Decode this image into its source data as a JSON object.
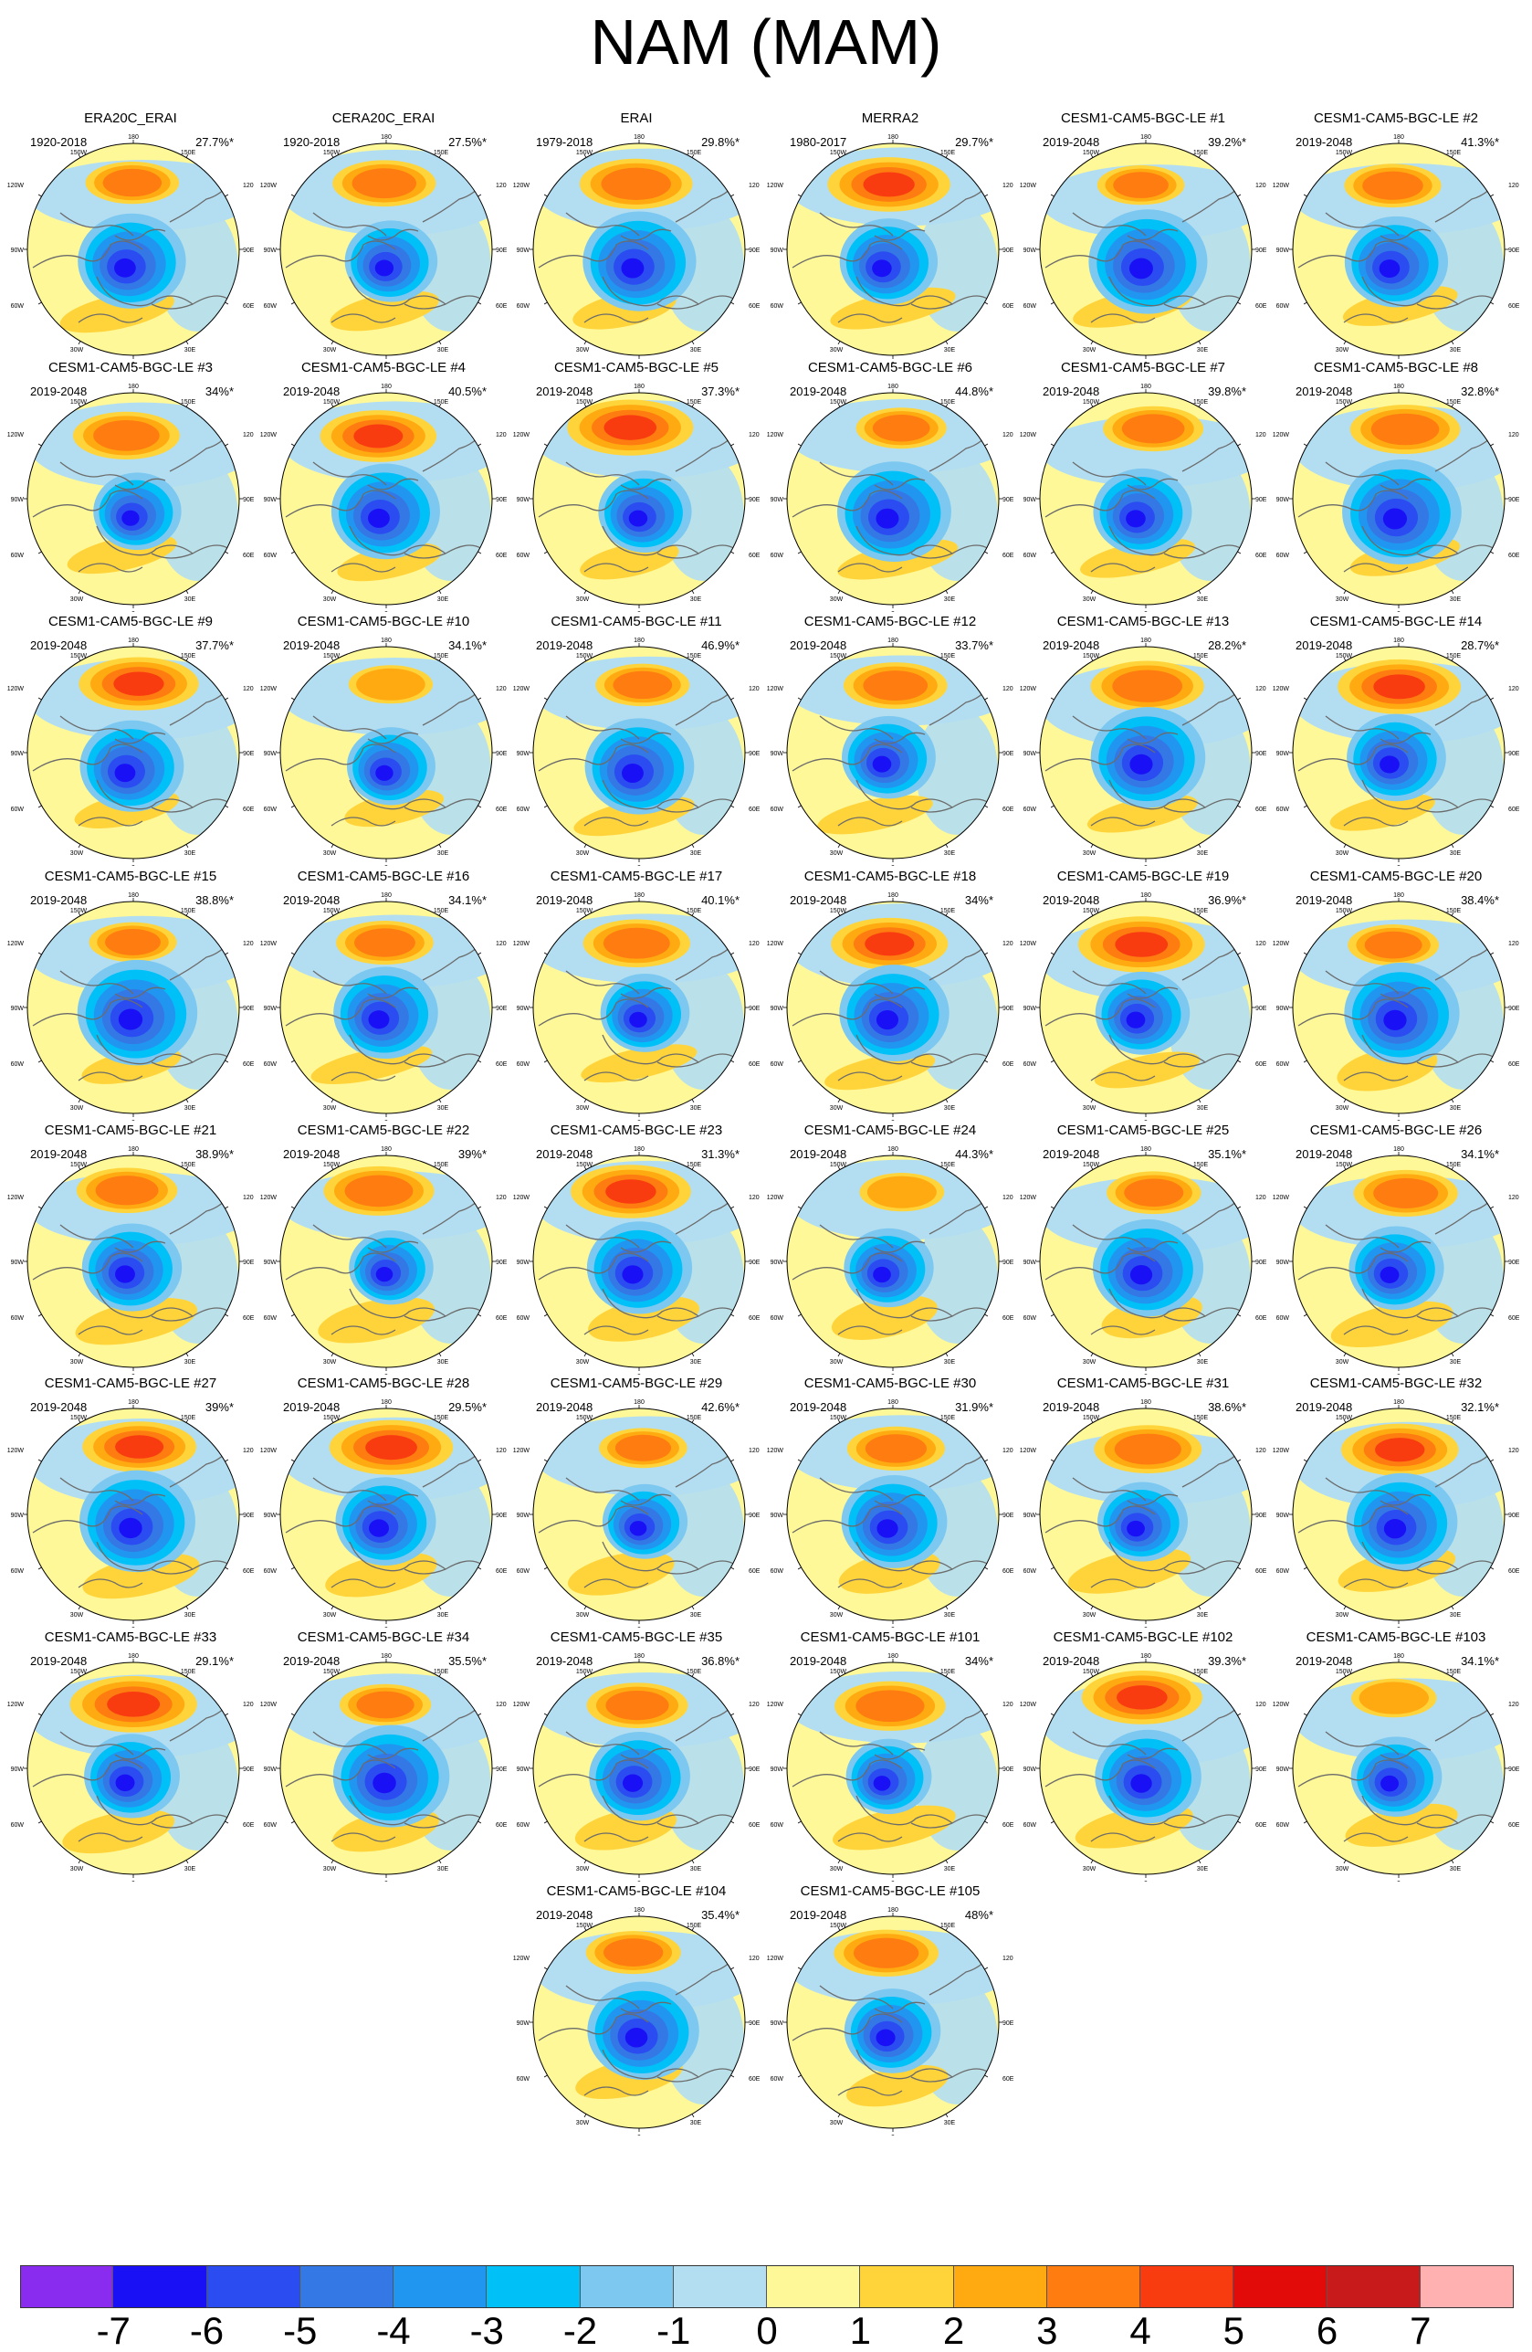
{
  "title": "NAM (MAM)",
  "panels": [
    {
      "title": "ERA20C_ERAI",
      "years": "1920-2018",
      "pct": "27.7%*"
    },
    {
      "title": "CERA20C_ERAI",
      "years": "1920-2018",
      "pct": "27.5%*"
    },
    {
      "title": "ERAI",
      "years": "1979-2018",
      "pct": "29.8%*"
    },
    {
      "title": "MERRA2",
      "years": "1980-2017",
      "pct": "29.7%*"
    },
    {
      "title": "CESM1-CAM5-BGC-LE #1",
      "years": "2019-2048",
      "pct": "39.2%*"
    },
    {
      "title": "CESM1-CAM5-BGC-LE #2",
      "years": "2019-2048",
      "pct": "41.3%*"
    },
    {
      "title": "CESM1-CAM5-BGC-LE #3",
      "years": "2019-2048",
      "pct": "34%*"
    },
    {
      "title": "CESM1-CAM5-BGC-LE #4",
      "years": "2019-2048",
      "pct": "40.5%*"
    },
    {
      "title": "CESM1-CAM5-BGC-LE #5",
      "years": "2019-2048",
      "pct": "37.3%*"
    },
    {
      "title": "CESM1-CAM5-BGC-LE #6",
      "years": "2019-2048",
      "pct": "44.8%*"
    },
    {
      "title": "CESM1-CAM5-BGC-LE #7",
      "years": "2019-2048",
      "pct": "39.8%*"
    },
    {
      "title": "CESM1-CAM5-BGC-LE #8",
      "years": "2019-2048",
      "pct": "32.8%*"
    },
    {
      "title": "CESM1-CAM5-BGC-LE #9",
      "years": "2019-2048",
      "pct": "37.7%*"
    },
    {
      "title": "CESM1-CAM5-BGC-LE #10",
      "years": "2019-2048",
      "pct": "34.1%*"
    },
    {
      "title": "CESM1-CAM5-BGC-LE #11",
      "years": "2019-2048",
      "pct": "46.9%*"
    },
    {
      "title": "CESM1-CAM5-BGC-LE #12",
      "years": "2019-2048",
      "pct": "33.7%*"
    },
    {
      "title": "CESM1-CAM5-BGC-LE #13",
      "years": "2019-2048",
      "pct": "28.2%*"
    },
    {
      "title": "CESM1-CAM5-BGC-LE #14",
      "years": "2019-2048",
      "pct": "28.7%*"
    },
    {
      "title": "CESM1-CAM5-BGC-LE #15",
      "years": "2019-2048",
      "pct": "38.8%*"
    },
    {
      "title": "CESM1-CAM5-BGC-LE #16",
      "years": "2019-2048",
      "pct": "34.1%*"
    },
    {
      "title": "CESM1-CAM5-BGC-LE #17",
      "years": "2019-2048",
      "pct": "40.1%*"
    },
    {
      "title": "CESM1-CAM5-BGC-LE #18",
      "years": "2019-2048",
      "pct": "34%*"
    },
    {
      "title": "CESM1-CAM5-BGC-LE #19",
      "years": "2019-2048",
      "pct": "36.9%*"
    },
    {
      "title": "CESM1-CAM5-BGC-LE #20",
      "years": "2019-2048",
      "pct": "38.4%*"
    },
    {
      "title": "CESM1-CAM5-BGC-LE #21",
      "years": "2019-2048",
      "pct": "38.9%*"
    },
    {
      "title": "CESM1-CAM5-BGC-LE #22",
      "years": "2019-2048",
      "pct": "39%*"
    },
    {
      "title": "CESM1-CAM5-BGC-LE #23",
      "years": "2019-2048",
      "pct": "31.3%*"
    },
    {
      "title": "CESM1-CAM5-BGC-LE #24",
      "years": "2019-2048",
      "pct": "44.3%*"
    },
    {
      "title": "CESM1-CAM5-BGC-LE #25",
      "years": "2019-2048",
      "pct": "35.1%*"
    },
    {
      "title": "CESM1-CAM5-BGC-LE #26",
      "years": "2019-2048",
      "pct": "34.1%*"
    },
    {
      "title": "CESM1-CAM5-BGC-LE #27",
      "years": "2019-2048",
      "pct": "39%*"
    },
    {
      "title": "CESM1-CAM5-BGC-LE #28",
      "years": "2019-2048",
      "pct": "29.5%*"
    },
    {
      "title": "CESM1-CAM5-BGC-LE #29",
      "years": "2019-2048",
      "pct": "42.6%*"
    },
    {
      "title": "CESM1-CAM5-BGC-LE #30",
      "years": "2019-2048",
      "pct": "31.9%*"
    },
    {
      "title": "CESM1-CAM5-BGC-LE #31",
      "years": "2019-2048",
      "pct": "38.6%*"
    },
    {
      "title": "CESM1-CAM5-BGC-LE #32",
      "years": "2019-2048",
      "pct": "32.1%*"
    },
    {
      "title": "CESM1-CAM5-BGC-LE #33",
      "years": "2019-2048",
      "pct": "29.1%*"
    },
    {
      "title": "CESM1-CAM5-BGC-LE #34",
      "years": "2019-2048",
      "pct": "35.5%*"
    },
    {
      "title": "CESM1-CAM5-BGC-LE #35",
      "years": "2019-2048",
      "pct": "36.8%*"
    },
    {
      "title": "CESM1-CAM5-BGC-LE #101",
      "years": "2019-2048",
      "pct": "34%*"
    },
    {
      "title": "CESM1-CAM5-BGC-LE #102",
      "years": "2019-2048",
      "pct": "39.3%*"
    },
    {
      "title": "CESM1-CAM5-BGC-LE #103",
      "years": "2019-2048",
      "pct": "34.1%*"
    },
    {
      "title": "CESM1-CAM5-BGC-LE #104",
      "years": "2019-2048",
      "pct": "35.4%*"
    },
    {
      "title": "CESM1-CAM5-BGC-LE #105",
      "years": "2019-2048",
      "pct": "48%*"
    }
  ],
  "map_labels": {
    "top": "180",
    "bottom": "0",
    "upper_left": "150W",
    "upper_right": "150E",
    "left_high": "120W",
    "right_high": "120E",
    "left_mid": "90W",
    "right_mid": "90E",
    "left_low": "60W",
    "right_low": "60E",
    "bottom_left": "30W",
    "bottom_right": "30E"
  },
  "colorbar": {
    "colors": [
      "#8a2cf0",
      "#1a10f5",
      "#2a4cf0",
      "#3478e6",
      "#2196f0",
      "#00c0f8",
      "#7cc8f0",
      "#b3def2",
      "#fff898",
      "#ffd43a",
      "#ffaa10",
      "#ff7c10",
      "#f83c10",
      "#e30a0a",
      "#c81a1a",
      "#ffb0b0"
    ],
    "labels": [
      "-7",
      "-6",
      "-5",
      "-4",
      "-3",
      "-2",
      "-1",
      "0",
      "1",
      "2",
      "3",
      "4",
      "5",
      "6",
      "7"
    ]
  }
}
